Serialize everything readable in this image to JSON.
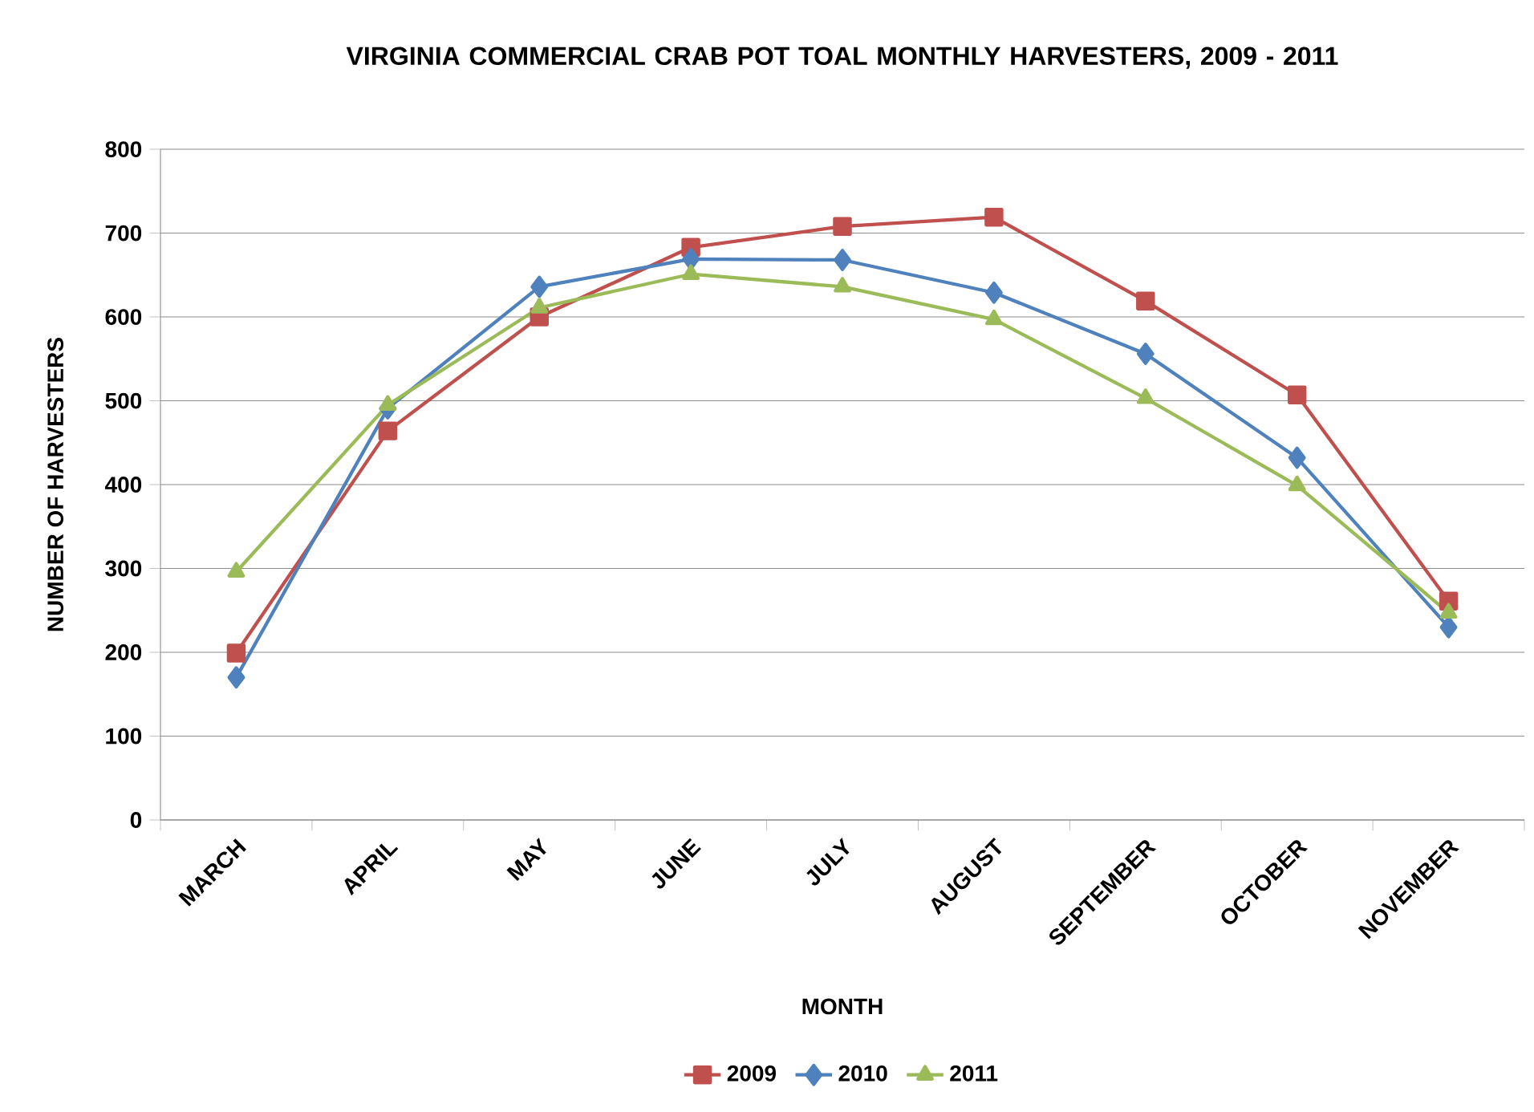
{
  "chart_data": {
    "type": "line",
    "title": "VIRGINIA COMMERCIAL CRAB POT TOAL MONTHLY HARVESTERS, 2009 - 2011",
    "xlabel": "MONTH",
    "ylabel": "NUMBER OF HARVESTERS",
    "categories": [
      "MARCH",
      "APRIL",
      "MAY",
      "JUNE",
      "JULY",
      "AUGUST",
      "SEPTEMBER",
      "OCTOBER",
      "NOVEMBER"
    ],
    "series": [
      {
        "name": "2009",
        "color": "#c0504d",
        "marker": "square",
        "values": [
          199,
          464,
          600,
          683,
          708,
          719,
          619,
          507,
          261
        ]
      },
      {
        "name": "2010",
        "color": "#4f81bd",
        "marker": "diamond",
        "values": [
          170,
          491,
          636,
          669,
          668,
          629,
          556,
          432,
          230
        ]
      },
      {
        "name": "2011",
        "color": "#9bbb59",
        "marker": "triangle",
        "values": [
          296,
          495,
          611,
          651,
          636,
          597,
          503,
          399,
          247
        ]
      }
    ],
    "ylim": [
      0,
      800
    ],
    "yticks": [
      0,
      100,
      200,
      300,
      400,
      500,
      600,
      700,
      800
    ],
    "grid": "y",
    "legend": "bottom",
    "line_style": "solid"
  }
}
